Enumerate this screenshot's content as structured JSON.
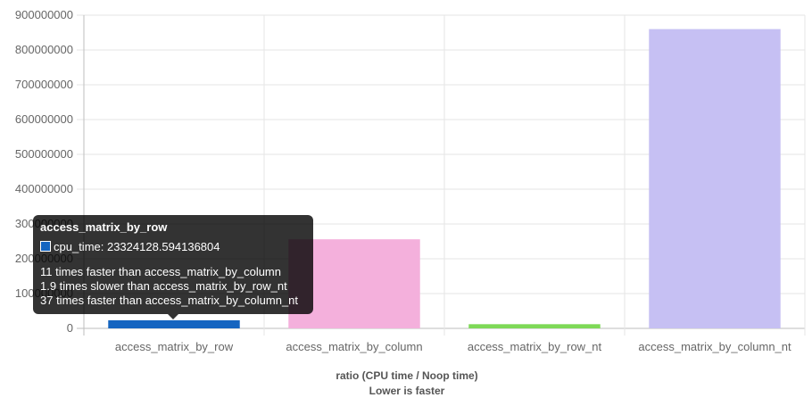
{
  "chart_data": {
    "type": "bar",
    "categories": [
      "access_matrix_by_row",
      "access_matrix_by_column",
      "access_matrix_by_row_nt",
      "access_matrix_by_column_nt"
    ],
    "series": [
      {
        "values": [
          23324128.594136804,
          256000000,
          12000000,
          860000000
        ]
      }
    ],
    "colors": [
      "#1565c0",
      "#f4b0dc",
      "#7ed957",
      "#c6c0f3"
    ],
    "ylim": [
      0,
      900000000
    ],
    "yticks": [
      "0",
      "100000000",
      "200000000",
      "300000000",
      "400000000",
      "500000000",
      "600000000",
      "700000000",
      "800000000",
      "900000000"
    ],
    "xlabel": "ratio (CPU time / Noop time)",
    "xlabel2": "Lower is faster",
    "grid": true
  },
  "tooltip": {
    "title": "access_matrix_by_row",
    "value_line": "cpu_time: 23324128.594136804",
    "footer": [
      "11 times faster than access_matrix_by_column",
      "1.9 times slower than access_matrix_by_row_nt",
      "37 times faster than access_matrix_by_column_nt"
    ]
  }
}
